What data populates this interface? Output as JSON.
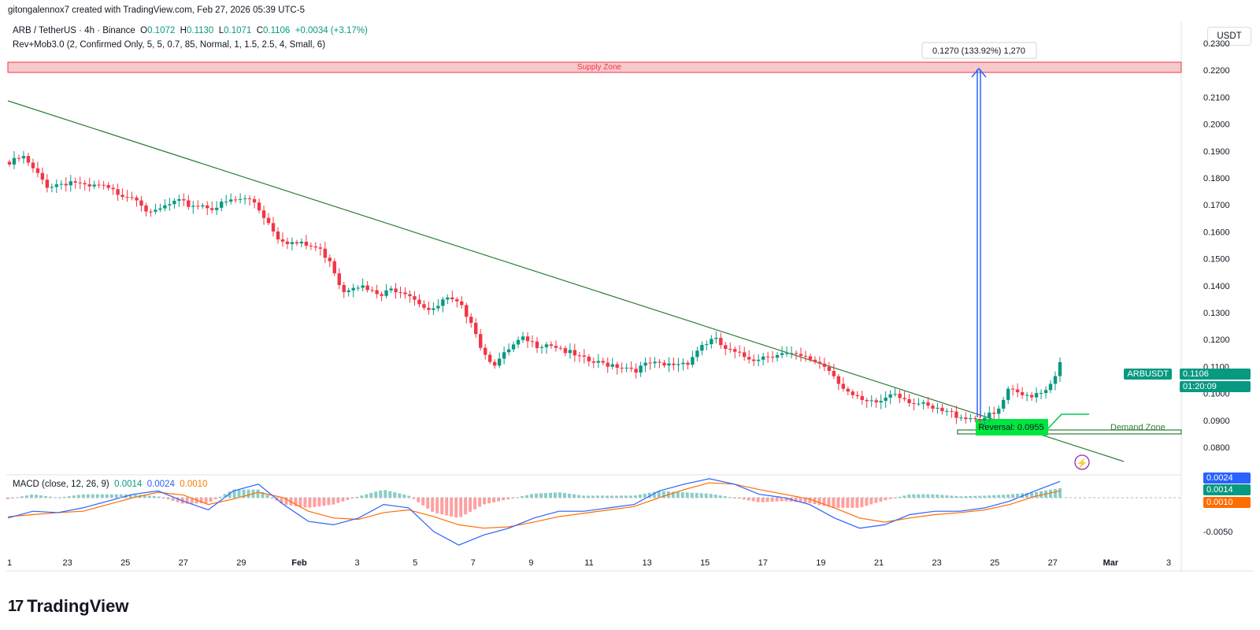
{
  "header": {
    "attribution": "gitongalennox7 created with TradingView.com, Feb 27, 2026 05:39 UTC-5"
  },
  "legend": {
    "symbol": "ARB / TetherUS · 4h · Binance",
    "o_label": "O",
    "o_value": "0.1072",
    "h_label": "H",
    "h_value": "0.1130",
    "l_label": "L",
    "l_value": "0.1071",
    "c_label": "C",
    "c_value": "0.1106",
    "change": "+0.0034 (+3.17%)",
    "indicator": "Rev+Mob3.0 (2, Confirmed Only, 5, 5, 0.7, 85, Normal, 1, 1.5, 2.5, 4, Small, 6)"
  },
  "currency_button": "USDT",
  "annotations": {
    "supply_zone": "Supply Zone",
    "demand_zone": "Demand Zone",
    "reversal": "Reversal: 0.0955",
    "measure": "0.1270 (133.92%) 1,270"
  },
  "price_tag": {
    "symbol": "ARBUSDT",
    "price": "0.1106",
    "countdown": "01:20:09"
  },
  "macd": {
    "legend": "MACD (close, 12, 26, 9)",
    "hist": "0.0014",
    "macd": "0.0024",
    "signal": "0.0010",
    "tag_macd": "0.0024",
    "tag_hist": "0.0014",
    "tag_signal": "0.0010"
  },
  "logo": {
    "text": "TradingView"
  },
  "colors": {
    "up": "#089981",
    "down": "#f23645",
    "macd": "#2962ff",
    "signal": "#ff6d00",
    "trend": "#2e7d32",
    "supply": "#f23645",
    "demand": "#00c853"
  },
  "chart_data": [
    {
      "type": "candlestick",
      "title": "ARB / TetherUS · 4h · Binance",
      "x_ticks": [
        "1",
        "23",
        "25",
        "27",
        "29",
        "Feb",
        "3",
        "5",
        "7",
        "9",
        "11",
        "13",
        "15",
        "17",
        "19",
        "21",
        "23",
        "25",
        "27",
        "Mar",
        "3"
      ],
      "y_ticks": [
        "0.2300",
        "0.2200",
        "0.2100",
        "0.2000",
        "0.1900",
        "0.1800",
        "0.1700",
        "0.1600",
        "0.1500",
        "0.1400",
        "0.1300",
        "0.1200",
        "0.1100",
        "0.1000",
        "0.0900",
        "0.0800"
      ],
      "ylim": [
        0.076,
        0.235
      ],
      "series": [
        {
          "name": "ARBUSDT",
          "close_path": [
            0.185,
            0.188,
            0.182,
            0.177,
            0.178,
            0.179,
            0.176,
            0.177,
            0.175,
            0.174,
            0.173,
            0.166,
            0.169,
            0.171,
            0.17,
            0.17,
            0.169,
            0.171,
            0.172,
            0.172,
            0.165,
            0.158,
            0.156,
            0.155,
            0.154,
            0.15,
            0.138,
            0.141,
            0.138,
            0.136,
            0.139,
            0.138,
            0.134,
            0.13,
            0.135,
            0.133,
            0.128,
            0.115,
            0.111,
            0.116,
            0.12,
            0.118,
            0.119,
            0.117,
            0.114,
            0.112,
            0.111,
            0.111,
            0.11,
            0.109,
            0.111,
            0.11,
            0.111,
            0.112,
            0.118,
            0.12,
            0.116,
            0.114,
            0.113,
            0.114,
            0.115,
            0.114,
            0.113,
            0.112,
            0.109,
            0.103,
            0.098,
            0.096,
            0.097,
            0.101,
            0.098,
            0.096,
            0.094,
            0.093,
            0.092,
            0.091,
            0.091,
            0.092,
            0.101,
            0.099,
            0.1,
            0.102,
            0.1106
          ]
        }
      ],
      "trendline": {
        "start": [
          "Jan 21",
          0.21
        ],
        "end": [
          "Feb 29",
          0.079
        ]
      },
      "supply_zone": [
        0.2205,
        0.2235
      ],
      "demand_zone": [
        0.088,
        0.0905
      ],
      "measure": {
        "from": 0.0955,
        "to": 0.2225
      }
    },
    {
      "type": "macd",
      "y_ticks": [
        "-0.0050"
      ],
      "series": [
        {
          "name": "MACD",
          "values": [
            -0.003,
            -0.002,
            -0.0022,
            -0.0015,
            -0.0005,
            0.0005,
            0.001,
            -0.0005,
            -0.0018,
            0.001,
            0.002,
            -0.001,
            -0.0035,
            -0.004,
            -0.003,
            -0.001,
            -0.0015,
            -0.005,
            -0.007,
            -0.0055,
            -0.0045,
            -0.003,
            -0.002,
            -0.002,
            -0.0015,
            -0.001,
            0.001,
            0.002,
            0.0028,
            0.002,
            0.0005,
            0.0,
            -0.001,
            -0.003,
            -0.0045,
            -0.004,
            -0.0025,
            -0.002,
            -0.002,
            -0.0015,
            -0.0005,
            0.001,
            0.0024
          ]
        },
        {
          "name": "Signal",
          "values": [
            -0.0028,
            -0.0025,
            -0.0022,
            -0.002,
            -0.001,
            0.0,
            0.0008,
            0.0004,
            -0.001,
            -0.0002,
            0.0008,
            0.0,
            -0.002,
            -0.003,
            -0.0032,
            -0.0022,
            -0.0018,
            -0.0028,
            -0.004,
            -0.0045,
            -0.0043,
            -0.0036,
            -0.0028,
            -0.0023,
            -0.0018,
            -0.0013,
            0.0,
            0.0012,
            0.0022,
            0.002,
            0.0012,
            0.0005,
            -0.0002,
            -0.0015,
            -0.003,
            -0.0036,
            -0.003,
            -0.0025,
            -0.0022,
            -0.0018,
            -0.001,
            0.0002,
            0.001
          ]
        }
      ]
    }
  ]
}
